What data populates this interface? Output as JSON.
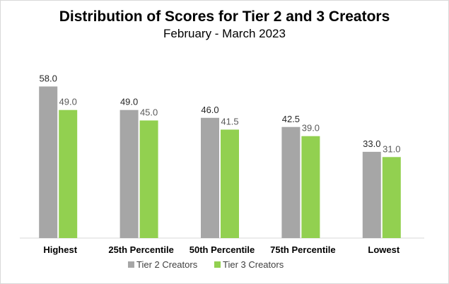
{
  "chart_data": {
    "type": "bar",
    "title": "Distribution of Scores for Tier 2 and 3 Creators",
    "subtitle": "February - March 2023",
    "categories": [
      "Highest",
      "25th Percentile",
      "50th Percentile",
      "75th Percentile",
      "Lowest"
    ],
    "series": [
      {
        "name": "Tier 2 Creators",
        "values": [
          58.0,
          49.0,
          46.0,
          42.5,
          33.0
        ],
        "color": "#a6a6a6",
        "labelColor": "#262626"
      },
      {
        "name": "Tier 3 Creators",
        "values": [
          49.0,
          45.0,
          41.5,
          39.0,
          31.0
        ],
        "color": "#92d050",
        "labelColor": "#595959"
      }
    ],
    "ylim": [
      0,
      60
    ],
    "grid": false,
    "legend": "bottom",
    "axis_color": "#d9d9d9"
  }
}
